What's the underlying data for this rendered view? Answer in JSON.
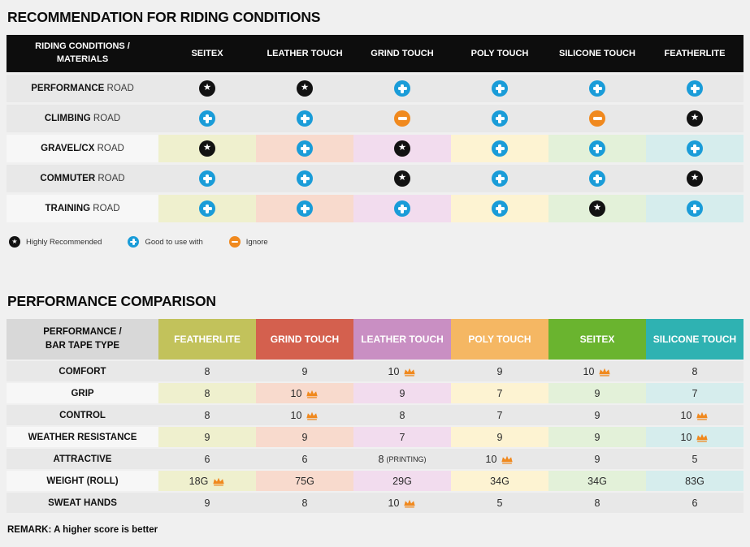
{
  "chart_data": [
    {
      "type": "table",
      "title": "RECOMMENDATION FOR RIDING CONDITIONS",
      "row_header_label": "RIDING CONDITIONS /\nMATERIALS",
      "columns": [
        "SEITEX",
        "LEATHER TOUCH",
        "GRIND TOUCH",
        "POLY TOUCH",
        "SILICONE TOUCH",
        "FEATHERLITE"
      ],
      "rows": [
        {
          "condition_bold": "PERFORMANCE",
          "condition_rest": "ROAD",
          "tinted": false,
          "ratings": [
            "star",
            "star",
            "plus",
            "plus",
            "plus",
            "plus"
          ]
        },
        {
          "condition_bold": "CLIMBING",
          "condition_rest": "ROAD",
          "tinted": false,
          "ratings": [
            "plus",
            "plus",
            "minus",
            "plus",
            "minus",
            "star"
          ]
        },
        {
          "condition_bold": "GRAVEL/CX",
          "condition_rest": "ROAD",
          "tinted": true,
          "ratings": [
            "star",
            "plus",
            "star",
            "plus",
            "plus",
            "plus"
          ]
        },
        {
          "condition_bold": "COMMUTER",
          "condition_rest": "ROAD",
          "tinted": false,
          "ratings": [
            "plus",
            "plus",
            "star",
            "plus",
            "plus",
            "star"
          ]
        },
        {
          "condition_bold": "TRAINING",
          "condition_rest": "ROAD",
          "tinted": true,
          "ratings": [
            "plus",
            "plus",
            "plus",
            "plus",
            "star",
            "plus"
          ]
        }
      ],
      "legend": [
        {
          "icon": "star",
          "label": "Highly Recommended"
        },
        {
          "icon": "plus",
          "label": "Good to use with"
        },
        {
          "icon": "minus",
          "label": "Ignore"
        }
      ]
    },
    {
      "type": "table",
      "title": "PERFORMANCE COMPARISON",
      "row_header_label": "PERFORMANCE /\nBAR TAPE TYPE",
      "columns": [
        "FEATHERLITE",
        "GRIND TOUCH",
        "LEATHER TOUCH",
        "POLY TOUCH",
        "SEITEX",
        "SILICONE TOUCH"
      ],
      "rows": [
        {
          "label": "COMFORT",
          "tinted": false,
          "values": [
            {
              "v": "8"
            },
            {
              "v": "9"
            },
            {
              "v": "10",
              "crown": true
            },
            {
              "v": "9"
            },
            {
              "v": "10",
              "crown": true
            },
            {
              "v": "8"
            }
          ]
        },
        {
          "label": "GRIP",
          "tinted": true,
          "values": [
            {
              "v": "8"
            },
            {
              "v": "10",
              "crown": true
            },
            {
              "v": "9"
            },
            {
              "v": "7"
            },
            {
              "v": "9"
            },
            {
              "v": "7"
            }
          ]
        },
        {
          "label": "CONTROL",
          "tinted": false,
          "values": [
            {
              "v": "8"
            },
            {
              "v": "10",
              "crown": true
            },
            {
              "v": "8"
            },
            {
              "v": "7"
            },
            {
              "v": "9"
            },
            {
              "v": "10",
              "crown": true
            }
          ]
        },
        {
          "label": "WEATHER RESISTANCE",
          "tinted": true,
          "values": [
            {
              "v": "9"
            },
            {
              "v": "9"
            },
            {
              "v": "7"
            },
            {
              "v": "9"
            },
            {
              "v": "9"
            },
            {
              "v": "10",
              "crown": true
            }
          ]
        },
        {
          "label": "ATTRACTIVE",
          "tinted": false,
          "values": [
            {
              "v": "6"
            },
            {
              "v": "6"
            },
            {
              "v": "8",
              "suffix": "(PRINTING)"
            },
            {
              "v": "10",
              "crown": true
            },
            {
              "v": "9"
            },
            {
              "v": "5"
            }
          ]
        },
        {
          "label": "WEIGHT (ROLL)",
          "tinted": true,
          "values": [
            {
              "v": "18G",
              "crown": true
            },
            {
              "v": "75G"
            },
            {
              "v": "29G"
            },
            {
              "v": "34G"
            },
            {
              "v": "34G"
            },
            {
              "v": "83G"
            }
          ]
        },
        {
          "label": "SWEAT HANDS",
          "tinted": false,
          "values": [
            {
              "v": "9"
            },
            {
              "v": "8"
            },
            {
              "v": "10",
              "crown": true
            },
            {
              "v": "5"
            },
            {
              "v": "8"
            },
            {
              "v": "6"
            }
          ]
        }
      ],
      "remark": "REMARK: A higher score is better"
    }
  ],
  "colors": {
    "column_strong": [
      "#c2c25b",
      "#d4604e",
      "#c98fc3",
      "#f5b763",
      "#6ab42f",
      "#2fb2b2"
    ],
    "column_pale": [
      "#eff0ce",
      "#f8dacd",
      "#f2dcee",
      "#fdf3d2",
      "#e3f1d9",
      "#d6eded"
    ],
    "star_icon_bg": "#121212",
    "plus_icon_bg": "#1a9cd8",
    "minus_icon_bg": "#f0891e",
    "crown": "#f0891e",
    "header_bg": "#0d0d0d",
    "row_gray": "#e8e8e8",
    "tinted_row_label_bg": "#f7f7f7",
    "perf_header_label_bg": "#d8d8d8",
    "page_bg": "#f0f0f0"
  }
}
